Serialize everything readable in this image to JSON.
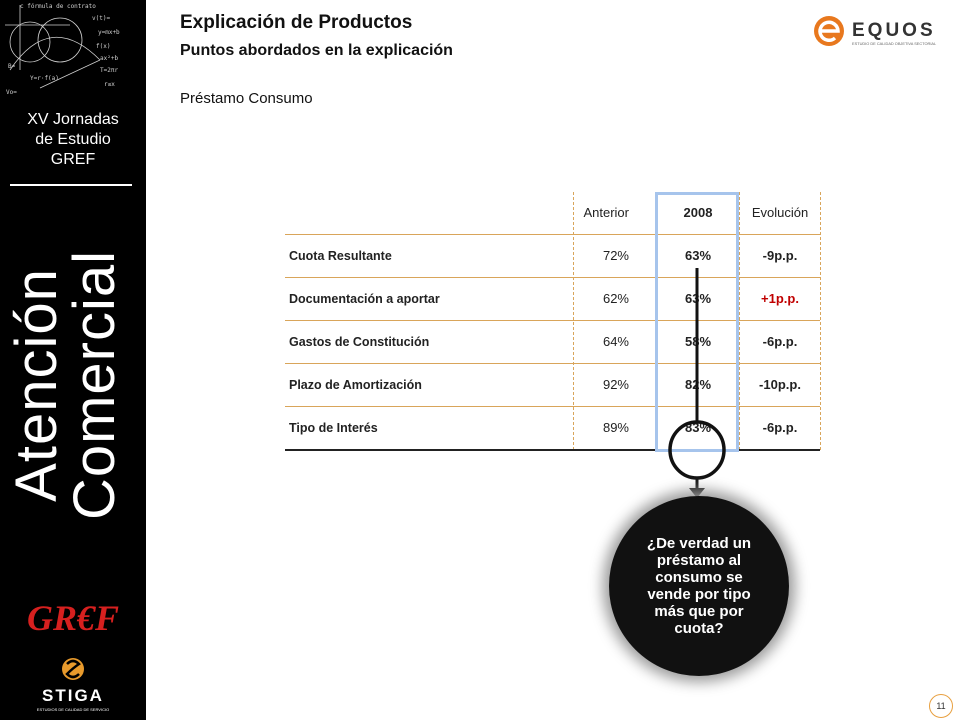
{
  "sidebar": {
    "event_lines": [
      "XV Jornadas",
      "de Estudio",
      "GREF"
    ],
    "vertical_title_lines": [
      "Atención",
      "Comercial"
    ],
    "gref_logo_text": "GR€F",
    "stiga_logo_text": "STIGA",
    "stiga_tagline": "ESTUDIOS DE CALIDAD DE SERVICIO"
  },
  "header": {
    "title": "Explicación de Productos",
    "subtitle": "Puntos abordados en la explicación",
    "section": "Préstamo Consumo",
    "logo_text": "EQUOS",
    "logo_tagline": "ESTUDIO DE CALIDAD OBJETIVA SECTORIAL"
  },
  "table": {
    "columns": [
      "Anterior",
      "2008",
      "Evolución"
    ],
    "rows": [
      {
        "label": "Cuota Resultante",
        "anterior": "72%",
        "y2008": "63%",
        "evolucion": "-9p.p."
      },
      {
        "label": "Documentación a aportar",
        "anterior": "62%",
        "y2008": "63%",
        "evolucion": "+1p.p."
      },
      {
        "label": "Gastos de Constitución",
        "anterior": "64%",
        "y2008": "58%",
        "evolucion": "-6p.p."
      },
      {
        "label": "Plazo de Amortización",
        "anterior": "92%",
        "y2008": "82%",
        "evolucion": "-10p.p."
      },
      {
        "label": "Tipo de Interés",
        "anterior": "89%",
        "y2008": "83%",
        "evolucion": "-6p.p."
      }
    ]
  },
  "callout": "¿De verdad un préstamo al consumo se vende por tipo más que por cuota?",
  "page_number": "11",
  "colors": {
    "positive": "#c00000",
    "highlight": "#a6c4ec",
    "accent": "#e8a040",
    "gref_red": "#d6201f"
  }
}
